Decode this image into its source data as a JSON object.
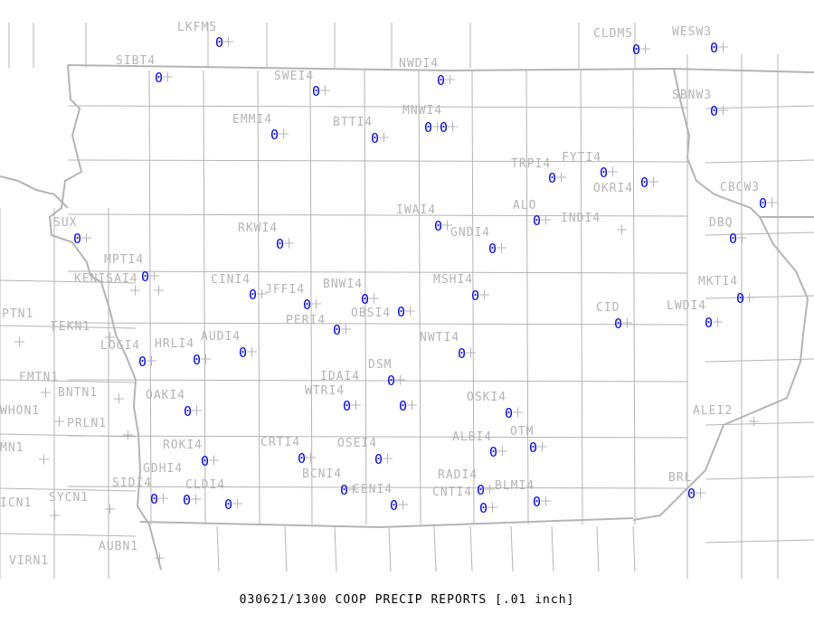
{
  "map": {
    "footer": "030621/1300 COOP PRECIP REPORTS [.01 inch]",
    "colors": {
      "boundary": "#b4b4b4",
      "value": "#0000ff",
      "label": "#b4b4b4",
      "background": "#ffffff"
    },
    "marker_icon": "plus-icon",
    "stations": [
      {
        "id": "LKFM5",
        "value": "0"
      },
      {
        "id": "SIBT4",
        "value": "0"
      },
      {
        "id": "SWEI4",
        "value": "0"
      },
      {
        "id": "NWDI4",
        "value": "0"
      },
      {
        "id": "CLDM5",
        "value": "0"
      },
      {
        "id": "WESW3",
        "value": "0"
      },
      {
        "id": "SBNW3",
        "value": "0"
      },
      {
        "id": "EMMI4",
        "value": "0"
      },
      {
        "id": "BTTI4",
        "value": "0"
      },
      {
        "id": "MNWI4",
        "value": "0"
      },
      {
        "id": "",
        "value": "0"
      },
      {
        "id": "TRPI4",
        "value": "0"
      },
      {
        "id": "FYTI4",
        "value": "0"
      },
      {
        "id": "OKRI4",
        "value": "0"
      },
      {
        "id": "CBCW3",
        "value": "0"
      },
      {
        "id": "IWAI4",
        "value": "0"
      },
      {
        "id": "ALO",
        "value": "0"
      },
      {
        "id": "INDI4",
        "value": ""
      },
      {
        "id": "GNDI4",
        "value": "0"
      },
      {
        "id": "DBQ",
        "value": "0"
      },
      {
        "id": "SUX",
        "value": "0"
      },
      {
        "id": "RKWI4",
        "value": "0"
      },
      {
        "id": "MPTI4",
        "value": "0"
      },
      {
        "id": "KENISAI4",
        "value": ""
      },
      {
        "id": "",
        "value": ""
      },
      {
        "id": "CINI4",
        "value": "0"
      },
      {
        "id": "JFFI4",
        "value": "0"
      },
      {
        "id": "BNWI4",
        "value": "0"
      },
      {
        "id": "OBSI4",
        "value": "0"
      },
      {
        "id": "MSHI4",
        "value": "0"
      },
      {
        "id": "PERI4",
        "value": "0"
      },
      {
        "id": "CID",
        "value": "0"
      },
      {
        "id": "LWDI4",
        "value": "0"
      },
      {
        "id": "MKTI4",
        "value": "0"
      },
      {
        "id": "PTN1",
        "value": ""
      },
      {
        "id": "TEKN1",
        "value": ""
      },
      {
        "id": "",
        "value": ""
      },
      {
        "id": "LOGI4",
        "value": "0"
      },
      {
        "id": "HRLI4",
        "value": "0"
      },
      {
        "id": "AUDI4",
        "value": "0"
      },
      {
        "id": "NWTI4",
        "value": "0"
      },
      {
        "id": "DSM",
        "value": "0"
      },
      {
        "id": "FMTN1",
        "value": ""
      },
      {
        "id": "BNTN1",
        "value": ""
      },
      {
        "id": "OAKI4",
        "value": "0"
      },
      {
        "id": "WTRI4",
        "value": "0"
      },
      {
        "id": "IDAI4",
        "value": "0"
      },
      {
        "id": "OSKI4",
        "value": "0"
      },
      {
        "id": "WHON1",
        "value": ""
      },
      {
        "id": "PRLN1",
        "value": ""
      },
      {
        "id": "ALEI2",
        "value": ""
      },
      {
        "id": "ROKI4",
        "value": "0"
      },
      {
        "id": "CRTI4",
        "value": "0"
      },
      {
        "id": "OSEI4",
        "value": "0"
      },
      {
        "id": "ALBI4",
        "value": "0"
      },
      {
        "id": "OTM",
        "value": "0"
      },
      {
        "id": "MN1",
        "value": ""
      },
      {
        "id": "BCNI4",
        "value": "0"
      },
      {
        "id": "CENI4",
        "value": "0"
      },
      {
        "id": "RADI4",
        "value": "0"
      },
      {
        "id": "CNTI4",
        "value": "0"
      },
      {
        "id": "BLMI4",
        "value": "0"
      },
      {
        "id": "BRL",
        "value": "0"
      },
      {
        "id": "SIDI4",
        "value": "0"
      },
      {
        "id": "GDHI4",
        "value": "0"
      },
      {
        "id": "CLDI4",
        "value": "0"
      },
      {
        "id": "ICN1",
        "value": ""
      },
      {
        "id": "SYCN1",
        "value": ""
      },
      {
        "id": "AUBN1",
        "value": ""
      },
      {
        "id": "VIRN1",
        "value": ""
      }
    ]
  }
}
